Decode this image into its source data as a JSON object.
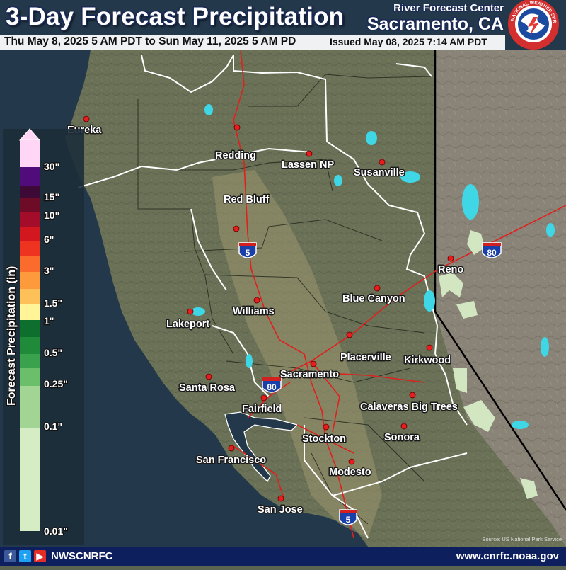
{
  "header": {
    "title": "3-Day Forecast Precipitation",
    "valid_range": "Thu May 8, 2025 5 AM PDT to Sun May 11, 2025 5 AM PD",
    "issued": "Issued May 08, 2025 7:14 AM PDT",
    "center_line1": "River Forecast Center",
    "center_line2": "Sacramento, CA",
    "logo_ring_text": "NATIONAL WEATHER SERVICE"
  },
  "legend": {
    "title": "Forecast Precipitation (in)",
    "labels": [
      "30\"",
      "15\"",
      "10\"",
      "6\"",
      "3\"",
      "1.5\"",
      "1\"",
      "0.5\"",
      "0.25\"",
      "0.1\"",
      "0.01\""
    ],
    "colors": {
      "c30plus": "#ffd6f6",
      "c20": "#4f0c7a",
      "c15": "#3d0a38",
      "c12": "#6e0c28",
      "c10": "#a40d2a",
      "c8": "#d2171f",
      "c6": "#ee3321",
      "c4": "#fb6b2b",
      "c3": "#fd9a3c",
      "c2": "#fec15a",
      "c1_5": "#fff497",
      "c1_25": "#0e6e2d",
      "c1": "#1e8a3a",
      "c0_75": "#3aa24d",
      "c0_5": "#6bbe6a",
      "c0_25": "#a2d594",
      "c0_01": "#d6ecc5"
    }
  },
  "cities": [
    {
      "name": "Eureka"
    },
    {
      "name": "Redding"
    },
    {
      "name": "Lassen NP"
    },
    {
      "name": "Susanville"
    },
    {
      "name": "Red Bluff"
    },
    {
      "name": "Reno"
    },
    {
      "name": "Blue Canyon"
    },
    {
      "name": "Williams"
    },
    {
      "name": "Lakeport"
    },
    {
      "name": "Placerville"
    },
    {
      "name": "Kirkwood"
    },
    {
      "name": "Sacramento"
    },
    {
      "name": "Santa Rosa"
    },
    {
      "name": "Calaveras Big Trees"
    },
    {
      "name": "Fairfield"
    },
    {
      "name": "Sonora"
    },
    {
      "name": "Stockton"
    },
    {
      "name": "San Francisco"
    },
    {
      "name": "Modesto"
    },
    {
      "name": "San Jose"
    }
  ],
  "shields": {
    "i5_north": "5",
    "i80_reno": "80",
    "i80_sac": "80",
    "i5_south": "5",
    "shield_word": "INTERSTATE"
  },
  "footer": {
    "handle": "NWSCNRFC",
    "url": "www.cnrfc.noaa.gov",
    "source": "Source: US National Park Service"
  },
  "colors": {
    "ocean": "#23384a",
    "land": "#6a7157",
    "nevada": "#8a8478",
    "footer": "#0d1f5c",
    "highway": "#e0201c",
    "water": "#3fd6e6"
  }
}
